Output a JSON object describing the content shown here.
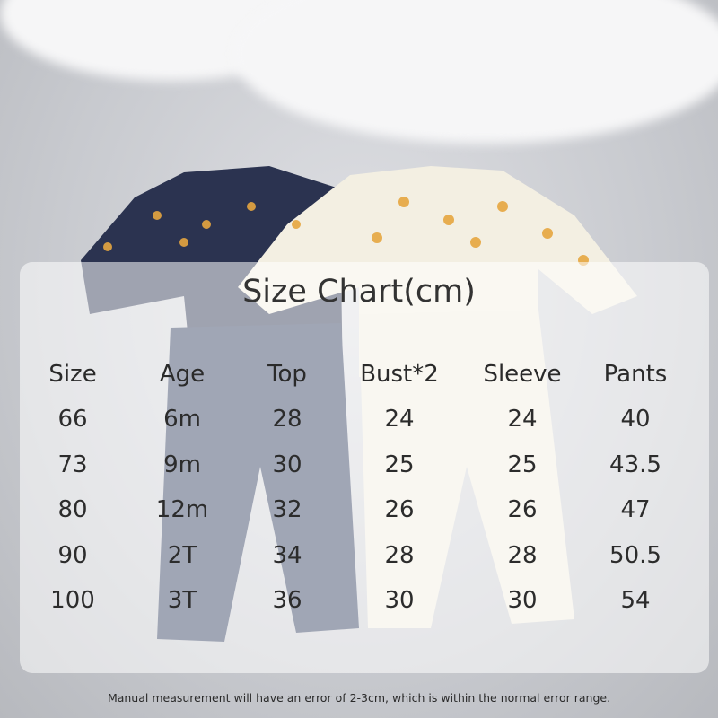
{
  "title": "Size Chart(cm)",
  "table": {
    "headers": [
      "Size",
      "Age",
      "Top",
      "Bust*2",
      "Sleeve",
      "Pants"
    ],
    "rows": [
      [
        "66",
        "6m",
        "28",
        "24",
        "24",
        "40"
      ],
      [
        "73",
        "9m",
        "30",
        "25",
        "25",
        "43.5"
      ],
      [
        "80",
        "12m",
        "32",
        "26",
        "26",
        "47"
      ],
      [
        "90",
        "2T",
        "34",
        "28",
        "28",
        "50.5"
      ],
      [
        "100",
        "3T",
        "36",
        "30",
        "30",
        "54"
      ]
    ]
  },
  "note": "Manual measurement will have an error of 2-3cm, which is within the normal error range.",
  "colors": {
    "navy_garment": "#2b3350",
    "cream_garment": "#f3efe2",
    "print": "#e6a640",
    "panel": "#ffffff"
  }
}
